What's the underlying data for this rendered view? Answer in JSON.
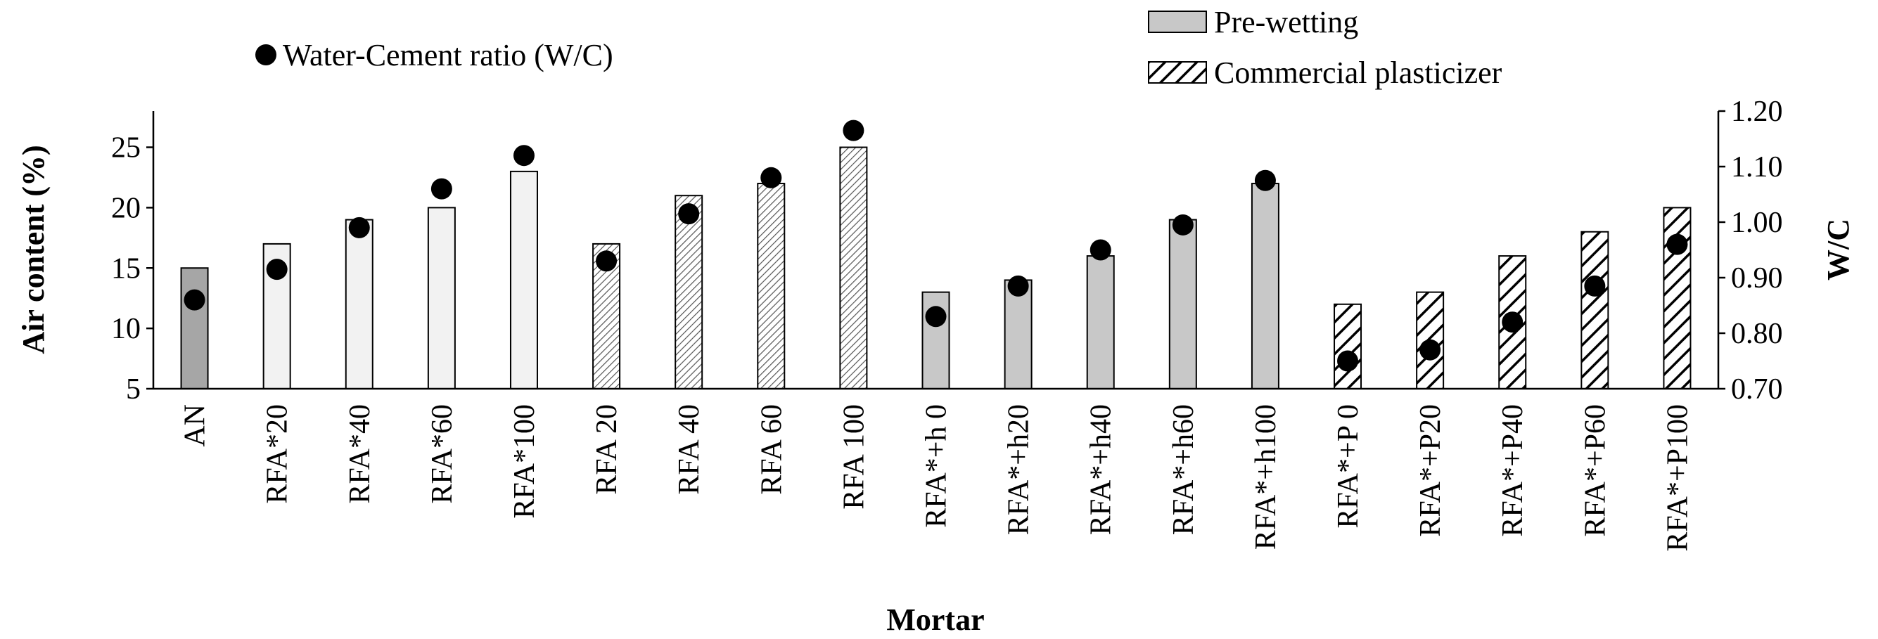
{
  "chart_data": {
    "type": "bar",
    "title": "",
    "xlabel": "Mortar",
    "ylabel": "Air content (%)",
    "y2label": "W/C",
    "ylim": [
      5,
      28
    ],
    "y2lim": [
      0.7,
      1.2
    ],
    "yticks": [
      "5",
      "10",
      "15",
      "20",
      "25"
    ],
    "y2ticks": [
      "0.70",
      "0.80",
      "0.90",
      "1.00",
      "1.10",
      "1.20"
    ],
    "categories": [
      "AN",
      "RFA*20",
      "RFA*40",
      "RFA*60",
      "RFA*100",
      "RFA 20",
      "RFA 40",
      "RFA 60",
      "RFA 100",
      "RFA*+h 0",
      "RFA*+h20",
      "RFA*+h40",
      "RFA*+h60",
      "RFA*+h100",
      "RFA*+P 0",
      "RFA*+P20",
      "RFA*+P40",
      "RFA*+P60",
      "RFA*+P100"
    ],
    "series": [
      {
        "name": "Air content (%)",
        "axis": "left",
        "kind": "bar",
        "values": [
          15,
          17,
          19,
          20,
          23,
          17,
          21,
          22,
          25,
          13,
          14,
          16,
          19,
          22,
          12,
          13,
          16,
          18,
          20
        ],
        "fills": [
          "dark",
          "light",
          "light",
          "light",
          "light",
          "finehatch",
          "finehatch",
          "finehatch",
          "finehatch",
          "grey",
          "grey",
          "grey",
          "grey",
          "grey",
          "hatch",
          "hatch",
          "hatch",
          "hatch",
          "hatch"
        ]
      },
      {
        "name": "Water-Cement ratio (W/C)",
        "axis": "right",
        "kind": "scatter",
        "values": [
          0.86,
          0.915,
          0.99,
          1.06,
          1.12,
          0.93,
          1.015,
          1.08,
          1.165,
          0.83,
          0.885,
          0.95,
          0.995,
          1.075,
          0.75,
          0.77,
          0.82,
          0.885,
          0.96
        ]
      }
    ],
    "legend": [
      {
        "label": "Water-Cement ratio (W/C)",
        "marker": "dot"
      },
      {
        "label": "Pre-wetting",
        "marker": "grey"
      },
      {
        "label": "Commercial plasticizer",
        "marker": "hatch"
      }
    ],
    "colors": {
      "dark": "#a6a6a6",
      "light": "#f2f2f2",
      "grey": "#c8c8c8",
      "finehatch_line": "#555555",
      "hatch_line": "#000000",
      "marker": "#000000",
      "axis": "#000000"
    }
  }
}
